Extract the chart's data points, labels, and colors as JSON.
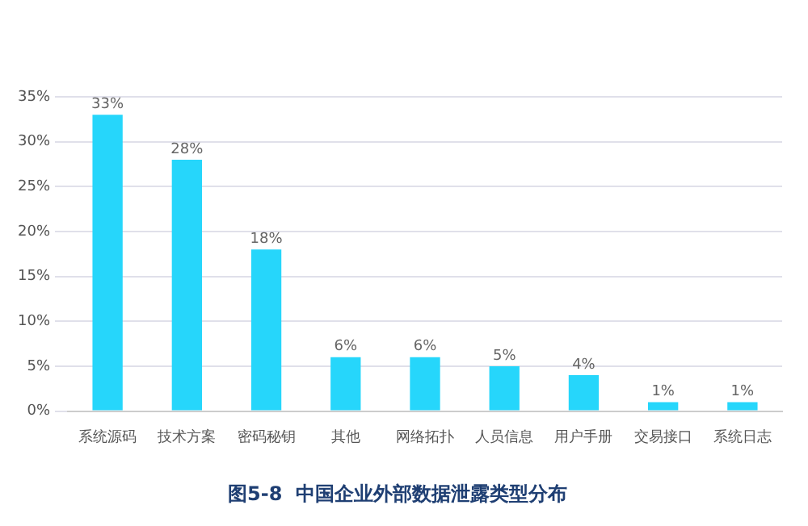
{
  "chart_data": {
    "type": "bar",
    "title": "图5-8  中国企业外部数据泄露类型分布",
    "categories": [
      "系统源码",
      "技术方案",
      "密码秘钥",
      "其他",
      "网络拓扑",
      "人员信息",
      "用户手册",
      "交易接口",
      "系统日志"
    ],
    "values": [
      33,
      28,
      18,
      6,
      6,
      5,
      4,
      1,
      1
    ],
    "value_labels": [
      "33%",
      "28%",
      "18%",
      "6%",
      "6%",
      "5%",
      "4%",
      "1%",
      "1%"
    ],
    "color": "#26d6fb",
    "ylim": [
      0,
      35
    ],
    "yticks": [
      {
        "value": 0,
        "label": "0%"
      },
      {
        "value": 5,
        "label": "5%"
      },
      {
        "value": 10,
        "label": "10%"
      },
      {
        "value": 15,
        "label": "15%"
      },
      {
        "value": 20,
        "label": "20%"
      },
      {
        "value": 25,
        "label": "25%"
      },
      {
        "value": 30,
        "label": "30%"
      },
      {
        "value": 35,
        "label": "35%"
      }
    ],
    "grid": "y"
  }
}
